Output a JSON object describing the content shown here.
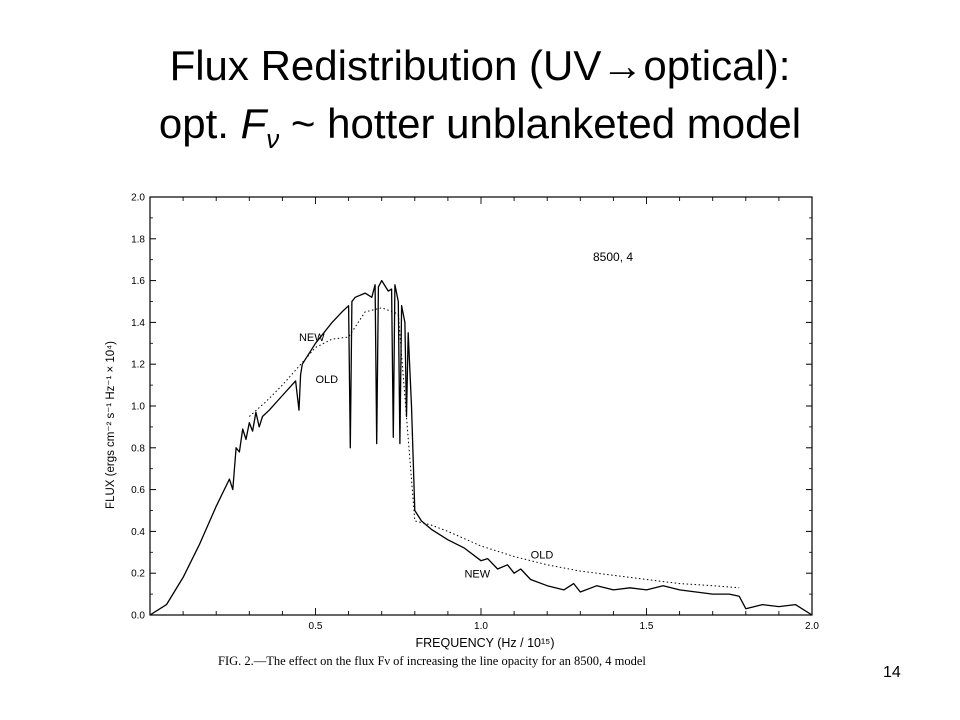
{
  "slide": {
    "title_line1": "Flux Redistribution (UV→optical):",
    "title_line2_pre": "opt. ",
    "title_line2_F": "F",
    "title_line2_sub": "ν",
    "title_line2_post": " ~ hotter unblanketed model",
    "caption": "FIG. 2.—The effect on the flux Fν of increasing the line opacity for an 8500, 4 model",
    "page_number": "14"
  },
  "chart_data": {
    "type": "line",
    "xlabel": "FREQUENCY (Hz / 10¹⁵)",
    "ylabel": "FLUX (ergs cm⁻² s⁻¹ Hz⁻¹ × 10⁴)",
    "xlim": [
      0,
      2.0
    ],
    "ylim": [
      0,
      2.0
    ],
    "x_ticks": [
      0.5,
      1.0,
      1.5,
      2.0
    ],
    "x_tick_labels": [
      "0.5",
      "1.0",
      "1.5",
      "2.0"
    ],
    "y_ticks": [
      0.0,
      0.2,
      0.4,
      0.6,
      0.8,
      1.0,
      1.2,
      1.4,
      1.6,
      1.8,
      2.0
    ],
    "y_tick_labels": [
      "0.0",
      "0.2",
      "0.4",
      "0.6",
      "0.8",
      "1.0",
      "1.2",
      "1.4",
      "1.6",
      "1.8",
      "2.0"
    ],
    "annotation": "8500, 4",
    "grid": false,
    "series": [
      {
        "name": "NEW",
        "style": "solid",
        "x": [
          0.0,
          0.05,
          0.1,
          0.15,
          0.2,
          0.24,
          0.25,
          0.26,
          0.27,
          0.28,
          0.29,
          0.3,
          0.31,
          0.32,
          0.33,
          0.34,
          0.36,
          0.4,
          0.44,
          0.45,
          0.455,
          0.46,
          0.5,
          0.55,
          0.58,
          0.6,
          0.605,
          0.61,
          0.62,
          0.65,
          0.67,
          0.68,
          0.685,
          0.69,
          0.7,
          0.72,
          0.73,
          0.735,
          0.74,
          0.75,
          0.755,
          0.76,
          0.77,
          0.775,
          0.78,
          0.79,
          0.8,
          0.82,
          0.85,
          0.9,
          0.95,
          1.0,
          1.02,
          1.05,
          1.08,
          1.1,
          1.12,
          1.15,
          1.2,
          1.25,
          1.28,
          1.3,
          1.35,
          1.4,
          1.45,
          1.5,
          1.55,
          1.6,
          1.65,
          1.7,
          1.75,
          1.78,
          1.8,
          1.85,
          1.9,
          1.95,
          2.0
        ],
        "y": [
          0.0,
          0.05,
          0.18,
          0.34,
          0.52,
          0.65,
          0.6,
          0.8,
          0.78,
          0.89,
          0.84,
          0.92,
          0.88,
          0.97,
          0.9,
          0.95,
          0.98,
          1.05,
          1.12,
          0.98,
          1.15,
          1.2,
          1.3,
          1.4,
          1.45,
          1.48,
          0.8,
          1.5,
          1.52,
          1.54,
          1.52,
          1.58,
          0.82,
          1.57,
          1.6,
          1.55,
          1.56,
          0.85,
          1.58,
          1.5,
          0.82,
          1.48,
          1.4,
          0.95,
          1.35,
          1.0,
          0.5,
          0.45,
          0.41,
          0.36,
          0.32,
          0.26,
          0.27,
          0.22,
          0.24,
          0.2,
          0.22,
          0.17,
          0.14,
          0.12,
          0.15,
          0.11,
          0.14,
          0.12,
          0.13,
          0.12,
          0.14,
          0.12,
          0.11,
          0.1,
          0.1,
          0.09,
          0.03,
          0.05,
          0.04,
          0.05,
          0.0
        ]
      },
      {
        "name": "OLD",
        "style": "dotted",
        "x": [
          0.3,
          0.35,
          0.4,
          0.45,
          0.5,
          0.55,
          0.6,
          0.65,
          0.7,
          0.75,
          0.8,
          0.85,
          0.9,
          1.0,
          1.1,
          1.2,
          1.3,
          1.4,
          1.5,
          1.6,
          1.7,
          1.78
        ],
        "y": [
          0.95,
          1.02,
          1.1,
          1.19,
          1.28,
          1.32,
          1.33,
          1.45,
          1.47,
          1.44,
          0.45,
          0.43,
          0.4,
          0.33,
          0.28,
          0.24,
          0.21,
          0.19,
          0.17,
          0.15,
          0.14,
          0.13
        ]
      }
    ],
    "labels": [
      {
        "text": "NEW",
        "x": 0.45,
        "y": 1.31
      },
      {
        "text": "OLD",
        "x": 0.5,
        "y": 1.11
      },
      {
        "text": "OLD",
        "x": 1.15,
        "y": 0.27
      },
      {
        "text": "NEW",
        "x": 0.95,
        "y": 0.18
      }
    ]
  }
}
